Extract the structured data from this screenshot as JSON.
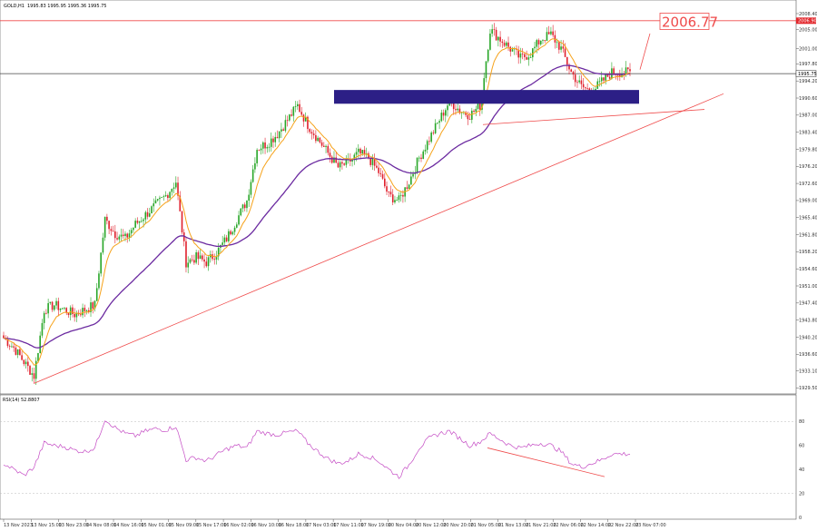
{
  "header": {
    "symbol_label": "GOLD,H1",
    "ohlc": "1995.83 1995.95 1995.36 1995.75"
  },
  "rsi_header": "RSI(14) 52.8807",
  "price_tag": "2006.77",
  "current_price_label": "1995.75",
  "resistance_price_label": "2006.90",
  "colors": {
    "bull": "#27a627",
    "bear": "#e0202c",
    "ema_fast": "#f6a21a",
    "ema_slow": "#6b2aa0",
    "trend": "#ef4a4a",
    "zone": "#2c1f86",
    "rsi": "#c44ac4"
  },
  "chart_data": [
    {
      "type": "candlestick",
      "symbol": "GOLD",
      "timeframe": "H1",
      "ylim": [
        1929.0,
        2010.5
      ],
      "yticks": [
        2008.4,
        2005.0,
        2001.0,
        1997.8,
        1994.2,
        1990.6,
        1987.0,
        1983.4,
        1979.8,
        1976.2,
        1972.6,
        1969.0,
        1965.4,
        1961.8,
        1958.2,
        1954.6,
        1951.0,
        1947.4,
        1943.8,
        1940.2,
        1936.6,
        1933.1,
        1929.5
      ],
      "xticks": [
        "13 Nov 2023",
        "13 Nov 15:00",
        "13 Nov 23:00",
        "14 Nov 08:00",
        "14 Nov 16:00",
        "15 Nov 01:00",
        "15 Nov 09:00",
        "15 Nov 17:00",
        "16 Nov 02:00",
        "16 Nov 10:00",
        "16 Nov 18:00",
        "17 Nov 03:00",
        "17 Nov 11:00",
        "17 Nov 19:00",
        "20 Nov 04:00",
        "20 Nov 12:00",
        "20 Nov 20:00",
        "21 Nov 05:00",
        "21 Nov 13:00",
        "21 Nov 21:00",
        "22 Nov 06:00",
        "22 Nov 14:00",
        "22 Nov 22:00",
        "23 Nov 07:00"
      ],
      "price_path": [
        1940,
        1938,
        1935,
        1932,
        1946,
        1947,
        1946,
        1945,
        1946,
        1947,
        1965,
        1962,
        1961,
        1964,
        1966,
        1968,
        1970,
        1973,
        1956,
        1957,
        1956,
        1958,
        1961,
        1965,
        1969,
        1980,
        1981,
        1983,
        1986,
        1989,
        1985,
        1982,
        1979,
        1976,
        1977,
        1979,
        1978,
        1975,
        1970,
        1969,
        1973,
        1978,
        1982,
        1986,
        1990,
        1988,
        1987,
        1989,
        2005,
        2003,
        2001,
        1999,
        2000,
        2003,
        2004,
        2001,
        1996,
        1993,
        1992,
        1994,
        1996,
        1996
      ],
      "horizontal_lines": [
        {
          "price": 2006.9,
          "role": "resistance"
        },
        {
          "price": 1995.75,
          "role": "current"
        }
      ],
      "zone": {
        "from_price": 1989.4,
        "to_price": 1992.3
      },
      "target_price": 2006.77
    },
    {
      "type": "line",
      "indicator": "RSI(14)",
      "ylim": [
        0,
        100
      ],
      "yticks": [
        80,
        60,
        40,
        20,
        0
      ],
      "values": [
        45,
        40,
        35,
        42,
        62,
        60,
        59,
        56,
        55,
        58,
        82,
        75,
        70,
        68,
        72,
        74,
        73,
        76,
        48,
        50,
        47,
        52,
        57,
        60,
        58,
        72,
        70,
        69,
        71,
        72,
        62,
        55,
        49,
        45,
        47,
        53,
        51,
        47,
        40,
        34,
        44,
        58,
        66,
        70,
        72,
        66,
        60,
        63,
        70,
        65,
        60,
        58,
        60,
        62,
        60,
        55,
        45,
        42,
        45,
        48,
        53,
        53
      ]
    }
  ]
}
